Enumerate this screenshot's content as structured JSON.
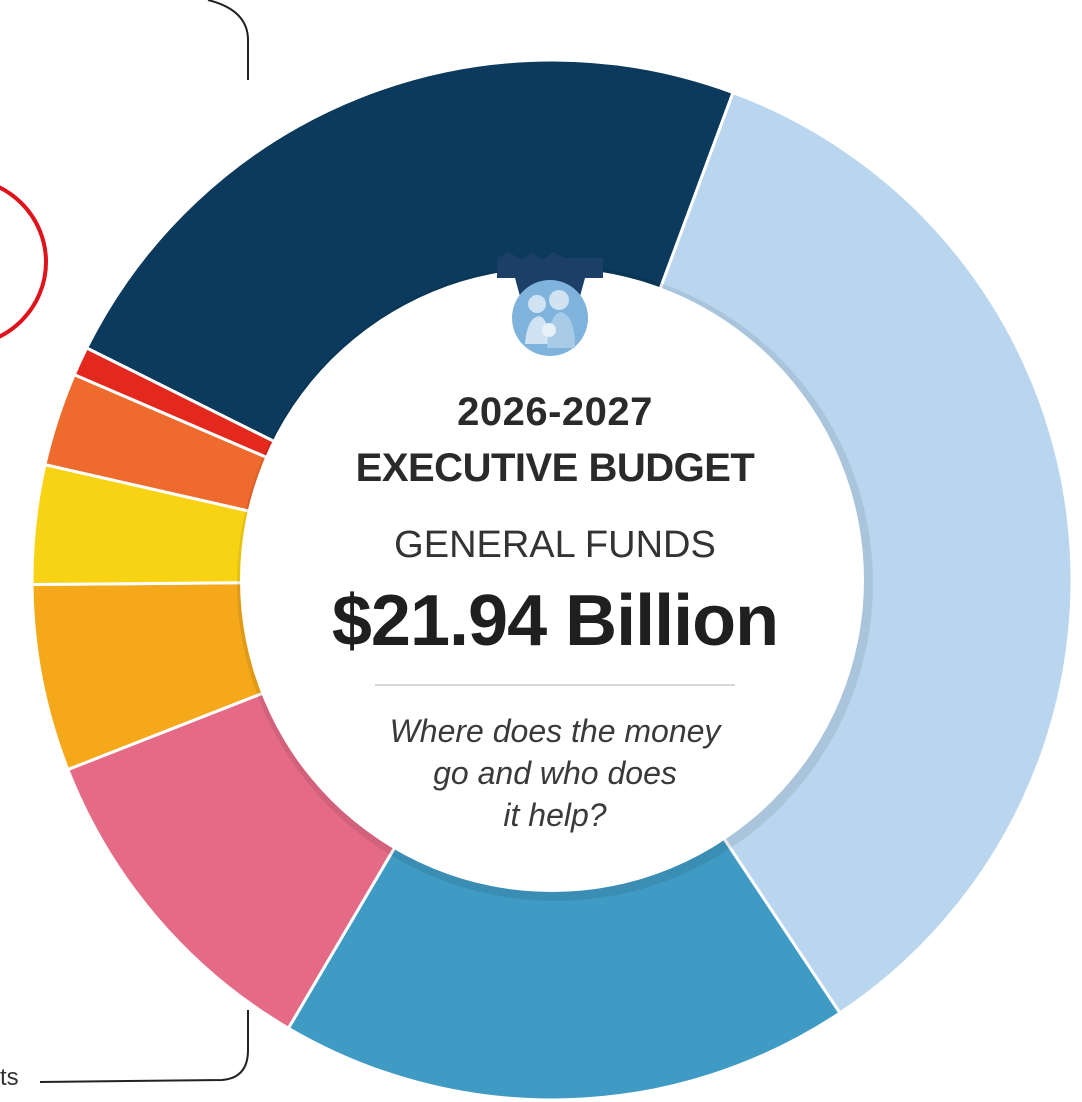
{
  "chart_data": {
    "type": "pie",
    "style": "donut",
    "slices": [
      {
        "key": "navy",
        "value": 23.3,
        "color": "#0b3a5c"
      },
      {
        "key": "light-blue",
        "value": 35.0,
        "color": "#b9d6ee"
      },
      {
        "key": "mid-blue",
        "value": 17.8,
        "color": "#3f9bc4"
      },
      {
        "key": "pink",
        "value": 10.6,
        "color": "#e46a86"
      },
      {
        "key": "amber",
        "value": 5.8,
        "color": "#f4a81a"
      },
      {
        "key": "yellow",
        "value": 3.7,
        "color": "#f7d313"
      },
      {
        "key": "orange",
        "value": 2.9,
        "color": "#ef6a2d"
      },
      {
        "key": "red",
        "value": 0.9,
        "color": "#e3281d"
      }
    ],
    "start_angle_deg": -63.5
  },
  "center": {
    "year": "2026-2027",
    "title": "EXECUTIVE BUDGET",
    "subtitle": "GENERAL FUNDS",
    "amount": "$21.94 Billion",
    "question_lines": [
      "Where does the money",
      "go and who does",
      "it help?"
    ]
  },
  "edge_text": "ts",
  "colors": {
    "logo_keystone": "#1b3f66",
    "logo_circle": "#7fb3dc",
    "highlight_ring": "#e0121c",
    "leader_line": "#222222"
  },
  "logo_icon": "keystone-family-icon"
}
